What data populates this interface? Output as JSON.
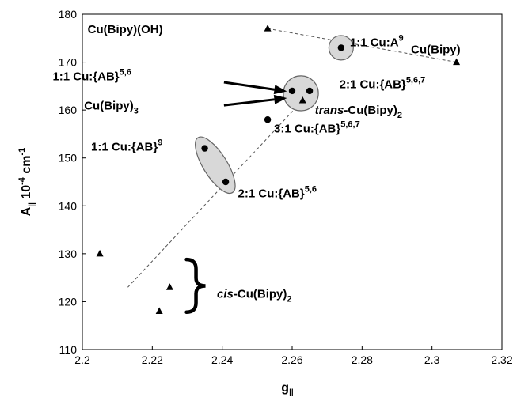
{
  "chart_data": {
    "type": "scatter",
    "title": "",
    "xlabel": {
      "main": "g",
      "sub": "||"
    },
    "ylabel": {
      "main": "A",
      "sub": "||",
      "rest": " 10",
      "sup": "-4",
      "unit": " cm",
      "unitsup": "-1"
    },
    "xlim": [
      2.2,
      2.32
    ],
    "ylim": [
      110,
      180
    ],
    "xticks": [
      "2.2",
      "2.22",
      "2.24",
      "2.26",
      "2.28",
      "2.3",
      "2.32"
    ],
    "yticks": [
      "110",
      "120",
      "130",
      "140",
      "150",
      "160",
      "170",
      "180"
    ],
    "grid": false,
    "series": [
      {
        "marker": "circle",
        "points": [
          {
            "x": 2.274,
            "y": 173
          },
          {
            "x": 2.26,
            "y": 164
          },
          {
            "x": 2.265,
            "y": 164
          },
          {
            "x": 2.253,
            "y": 158
          },
          {
            "x": 2.235,
            "y": 152
          },
          {
            "x": 2.241,
            "y": 145
          }
        ]
      },
      {
        "marker": "triangle",
        "points": [
          {
            "x": 2.253,
            "y": 177
          },
          {
            "x": 2.307,
            "y": 170
          },
          {
            "x": 2.263,
            "y": 162
          },
          {
            "x": 2.205,
            "y": 130
          },
          {
            "x": 2.225,
            "y": 123
          },
          {
            "x": 2.222,
            "y": 118
          }
        ]
      }
    ],
    "dashed_lines": [
      {
        "from": [
          2.253,
          177
        ],
        "to": [
          2.307,
          170
        ]
      },
      {
        "from": [
          2.213,
          123
        ],
        "to": [
          2.263,
          162
        ]
      }
    ],
    "highlights": [
      {
        "shape": "circle",
        "cx": 2.274,
        "cy": 173,
        "r": 0.0035
      },
      {
        "shape": "circle",
        "cx": 2.2625,
        "cy": 163.5,
        "r": 0.005
      },
      {
        "shape": "ellipse",
        "from": [
          2.235,
          152
        ],
        "to": [
          2.241,
          145
        ]
      }
    ],
    "annotations": [
      {
        "id": "cu-bipy-oh",
        "parts": [
          {
            "t": "Cu(Bipy)(OH)"
          }
        ],
        "x": 2.2015,
        "y": 176,
        "style": "bold"
      },
      {
        "id": "cu-a9",
        "parts": [
          {
            "t": "1:1 Cu:A"
          },
          {
            "t": "9",
            "sup": true
          }
        ],
        "x": 2.2765,
        "y": 173.3,
        "style": "bold"
      },
      {
        "id": "cu-bipy",
        "parts": [
          {
            "t": "Cu(Bipy)"
          }
        ],
        "x": 2.294,
        "y": 171.8,
        "style": "bold"
      },
      {
        "id": "cu-ab-56-top",
        "parts": [
          {
            "t": "1:1 Cu:{AB}"
          },
          {
            "t": "5,6",
            "sup": true
          }
        ],
        "x": 2.1915,
        "y": 166.2,
        "style": "bold"
      },
      {
        "id": "cu-ab-567-21",
        "parts": [
          {
            "t": "2:1 Cu:{AB}"
          },
          {
            "t": "5,6,7",
            "sup": true
          }
        ],
        "x": 2.2735,
        "y": 164.6,
        "style": "bold"
      },
      {
        "id": "cu-bipy3",
        "parts": [
          {
            "t": "Cu(Bipy)"
          },
          {
            "t": "3",
            "sub": true
          }
        ],
        "x": 2.2005,
        "y": 160.1,
        "style": "bold"
      },
      {
        "id": "trans-cu-bipy2",
        "parts": [
          {
            "t": "trans",
            "italic": true
          },
          {
            "t": "-Cu(Bipy)"
          },
          {
            "t": "2",
            "sub": true
          }
        ],
        "x": 2.2665,
        "y": 159.2,
        "style": "bold"
      },
      {
        "id": "cu-ab-567-31",
        "parts": [
          {
            "t": "3:1 Cu:{AB}"
          },
          {
            "t": "5,6,7",
            "sup": true
          }
        ],
        "x": 2.2548,
        "y": 155.3,
        "style": "bold"
      },
      {
        "id": "cu-ab-9",
        "parts": [
          {
            "t": "1:1 Cu:{AB}"
          },
          {
            "t": "9",
            "sup": true
          }
        ],
        "x": 2.2025,
        "y": 151.5,
        "style": "bold"
      },
      {
        "id": "cu-ab-56-bottom",
        "parts": [
          {
            "t": "2:1 Cu:{AB}"
          },
          {
            "t": "5,6",
            "sup": true
          }
        ],
        "x": 2.2445,
        "y": 141.8,
        "style": "bold"
      },
      {
        "id": "cis-cu-bipy2",
        "parts": [
          {
            "t": "cis",
            "italic": true
          },
          {
            "t": "-Cu(Bipy)"
          },
          {
            "t": "2",
            "sub": true
          }
        ],
        "x": 2.2385,
        "y": 120.8,
        "style": "bold"
      }
    ],
    "arrows": [
      {
        "from": [
          2.2405,
          165.8
        ],
        "to": [
          2.2585,
          163.9
        ]
      },
      {
        "from": [
          2.2405,
          161.0
        ],
        "to": [
          2.2585,
          162.5
        ]
      }
    ],
    "brace": {
      "x": 2.2325,
      "y_top": 128.8,
      "y_bottom": 117.8
    }
  }
}
